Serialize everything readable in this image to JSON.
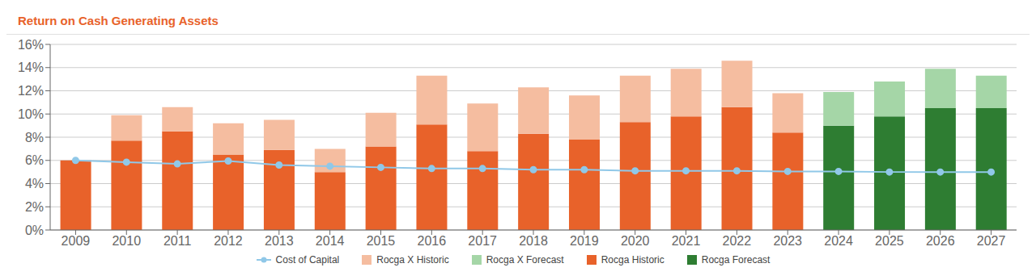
{
  "chart_data": {
    "type": "bar",
    "title": "Return on Cash Generating Assets",
    "stacked": true,
    "grid": true,
    "categories": [
      2009,
      2010,
      2011,
      2012,
      2013,
      2014,
      2015,
      2016,
      2017,
      2018,
      2019,
      2020,
      2021,
      2022,
      2023,
      2024,
      2025,
      2026,
      2027
    ],
    "ylim": [
      0,
      0.16
    ],
    "yticks": [
      {
        "value": 0,
        "label": "0%"
      },
      {
        "value": 0.02,
        "label": "2%"
      },
      {
        "value": 0.04,
        "label": "4%"
      },
      {
        "value": 0.06,
        "label": "6%"
      },
      {
        "value": 0.08,
        "label": "8%"
      },
      {
        "value": 0.1,
        "label": "10%"
      },
      {
        "value": 0.12,
        "label": "12%"
      },
      {
        "value": 0.14,
        "label": "14%"
      },
      {
        "value": 0.16,
        "label": "16%"
      }
    ],
    "series": [
      {
        "name": "Cost of Capital",
        "type": "line",
        "marker": "circle",
        "color": "#90c8e8",
        "values": [
          0.06,
          0.0585,
          0.057,
          0.0595,
          0.056,
          0.055,
          0.054,
          0.053,
          0.053,
          0.052,
          0.052,
          0.051,
          0.051,
          0.051,
          0.0505,
          0.0505,
          0.05,
          0.05,
          0.05
        ]
      },
      {
        "name": "Rocga X Historic",
        "type": "bar",
        "color": "#f5bda0",
        "values": [
          0,
          0.022,
          0.021,
          0.027,
          0.026,
          0.02,
          0.029,
          0.042,
          0.041,
          0.04,
          0.038,
          0.04,
          0.041,
          0.04,
          0.034,
          0,
          0,
          0,
          0
        ]
      },
      {
        "name": "Rocga X Forecast",
        "type": "bar",
        "color": "#a5d6a7",
        "values": [
          0,
          0,
          0,
          0,
          0,
          0,
          0,
          0,
          0,
          0,
          0,
          0,
          0,
          0,
          0,
          0.029,
          0.03,
          0.034,
          0.028
        ]
      },
      {
        "name": "Rocga Historic",
        "type": "bar",
        "color": "#e8622a",
        "values": [
          0.06,
          0.077,
          0.085,
          0.065,
          0.069,
          0.05,
          0.072,
          0.091,
          0.068,
          0.083,
          0.078,
          0.093,
          0.098,
          0.106,
          0.084,
          0,
          0,
          0,
          0
        ]
      },
      {
        "name": "Rocga Forecast",
        "type": "bar",
        "color": "#2e7d32",
        "values": [
          0,
          0,
          0,
          0,
          0,
          0,
          0,
          0,
          0,
          0,
          0,
          0,
          0,
          0,
          0,
          0.09,
          0.098,
          0.105,
          0.105
        ]
      }
    ]
  }
}
